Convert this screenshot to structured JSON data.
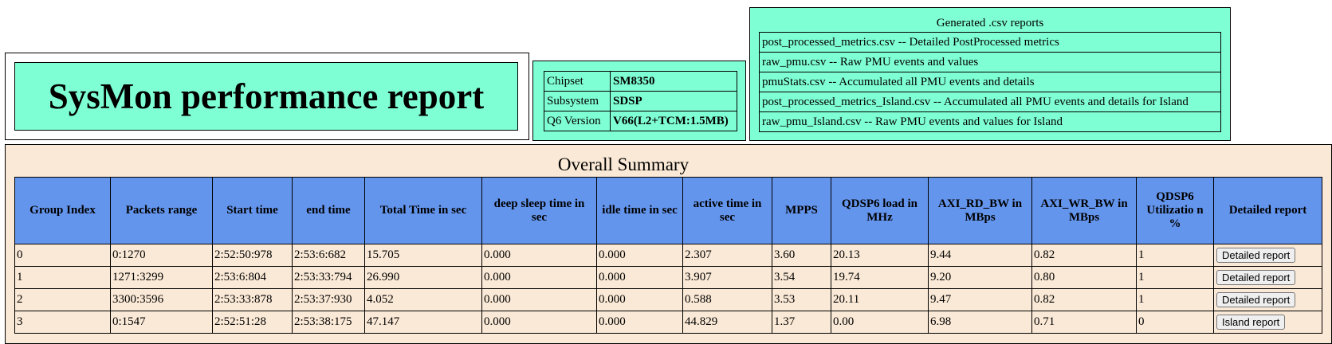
{
  "title": "SysMon performance report",
  "chipset_info": [
    {
      "label": "Chipset",
      "value": "SM8350"
    },
    {
      "label": "Subsystem",
      "value": "SDSP"
    },
    {
      "label": "Q6 Version",
      "value": "V66(L2+TCM:1.5MB)"
    }
  ],
  "csv_reports": {
    "title": "Generated .csv reports",
    "items": [
      "post_processed_metrics.csv -- Detailed PostProcessed metrics",
      "raw_pmu.csv -- Raw PMU events and values",
      "pmuStats.csv -- Accumulated all PMU events and details",
      "post_processed_metrics_Island.csv -- Accumulated all PMU events and details for Island",
      "raw_pmu_Island.csv -- Raw PMU events and values for Island"
    ]
  },
  "summary": {
    "title": "Overall Summary",
    "headers": [
      "Group Index",
      "Packets range",
      "Start time",
      "end time",
      "Total Time in sec",
      "deep sleep time in sec",
      "idle time in sec",
      "active time in sec",
      "MPPS",
      "QDSP6 load in MHz",
      "AXI_RD_BW in MBps",
      "AXI_WR_BW in MBps",
      "QDSP6 Utilizatio n %",
      "Detailed report"
    ],
    "rows": [
      {
        "cells": [
          "0",
          "0:1270",
          "2:52:50:978",
          "2:53:6:682",
          "15.705",
          "0.000",
          "0.000",
          "2.307",
          "3.60",
          "20.13",
          "9.44",
          "0.82",
          "1"
        ],
        "button": "Detailed report"
      },
      {
        "cells": [
          "1",
          "1271:3299",
          "2:53:6:804",
          "2:53:33:794",
          "26.990",
          "0.000",
          "0.000",
          "3.907",
          "3.54",
          "19.74",
          "9.20",
          "0.80",
          "1"
        ],
        "button": "Detailed report"
      },
      {
        "cells": [
          "2",
          "3300:3596",
          "2:53:33:878",
          "2:53:37:930",
          "4.052",
          "0.000",
          "0.000",
          "0.588",
          "3.53",
          "20.11",
          "9.47",
          "0.82",
          "1"
        ],
        "button": "Detailed report"
      },
      {
        "cells": [
          "3",
          "0:1547",
          "2:52:51:28",
          "2:53:38:175",
          "47.147",
          "0.000",
          "0.000",
          "44.829",
          "1.37",
          "0.00",
          "6.98",
          "0.71",
          "0"
        ],
        "button": "Island report"
      }
    ]
  },
  "colors": {
    "aquamarine": "#7fffd4",
    "header_blue": "#6495ed",
    "summary_bg": "#fae9d6"
  }
}
